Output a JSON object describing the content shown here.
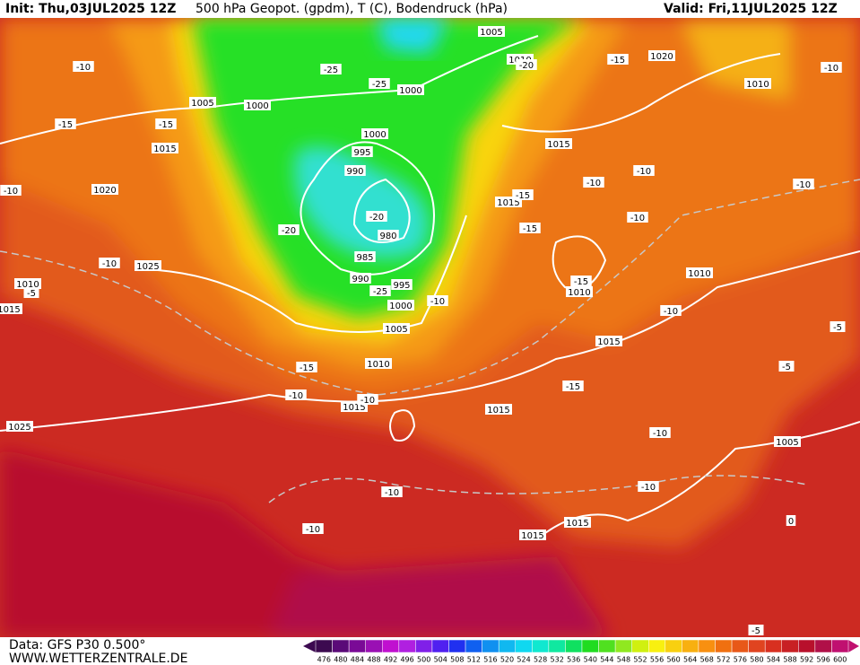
{
  "header": {
    "init": "Init: Thu,03JUL2025 12Z",
    "title": "500 hPa Geopot. (gpdm), T (C), Bodendruck (hPa)",
    "valid": "Valid: Fri,11JUL2025 12Z"
  },
  "footer": {
    "data": "Data: GFS P30 0.500°",
    "site": "WWW.WETTERZENTRALE.DE"
  },
  "colorbar": {
    "levels": [
      476,
      480,
      484,
      488,
      492,
      496,
      500,
      504,
      508,
      512,
      516,
      520,
      524,
      528,
      532,
      536,
      540,
      544,
      548,
      552,
      556,
      560,
      564,
      568,
      572,
      576,
      580,
      584,
      588,
      592,
      596,
      600
    ],
    "colors": [
      "#3c0a50",
      "#5a0a78",
      "#7a0a96",
      "#9a10b4",
      "#c010d0",
      "#b020e0",
      "#8020e8",
      "#5020f0",
      "#2030f0",
      "#1060f0",
      "#1090f0",
      "#10b8f0",
      "#10d8f0",
      "#10e8d0",
      "#10e8a0",
      "#10e060",
      "#20dc20",
      "#50e020",
      "#90e820",
      "#d0f010",
      "#f8f010",
      "#f8d010",
      "#f8b010",
      "#f89010",
      "#f07010",
      "#e85818",
      "#e04420",
      "#d83020",
      "#c82024",
      "#b8102c",
      "#b01048",
      "#c01070"
    ]
  },
  "pressure_labels": [
    "1005",
    "1010",
    "1000",
    "1005",
    "1000",
    "1000",
    "995",
    "990",
    "980",
    "985",
    "990",
    "995",
    "1000",
    "1005",
    "1010",
    "1015",
    "1015",
    "1015",
    "1015",
    "1020",
    "1010",
    "1010",
    "1010",
    "1015",
    "1005",
    "1015",
    "1015",
    "1020",
    "1025",
    "1015",
    "1010",
    "1025",
    "1015"
  ],
  "temperature_labels": [
    "-10",
    "-15",
    "-15",
    "-25",
    "-25",
    "-20",
    "-20",
    "-25",
    "-10",
    "-15",
    "-10",
    "-10",
    "-15",
    "-20",
    "-10",
    "-10",
    "-10",
    "-15",
    "-15",
    "-15",
    "-10",
    "-15",
    "-10",
    "-10",
    "-10",
    "-10",
    "-10",
    "-10",
    "-5",
    "-5",
    "-5",
    "-10",
    "-5",
    "-10",
    "0"
  ]
}
